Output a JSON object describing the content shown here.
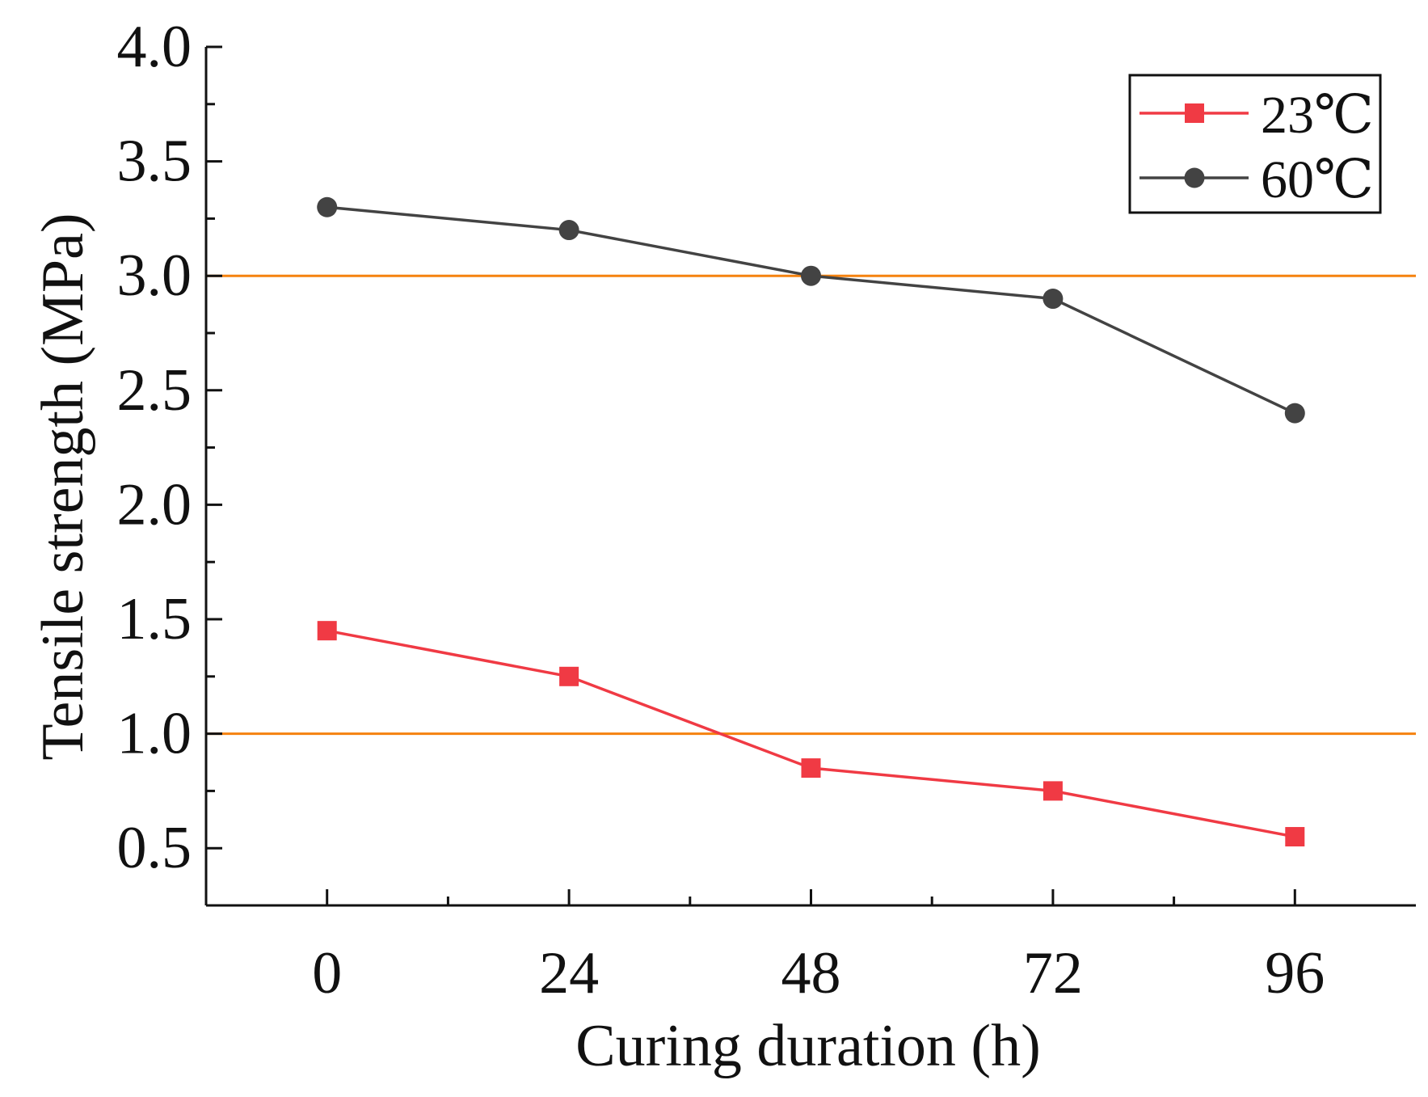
{
  "chart_data": {
    "type": "line",
    "title": "",
    "xlabel": "Curing duration (h)",
    "ylabel": "Tensile strength (MPa)",
    "x": [
      0,
      24,
      48,
      72,
      96
    ],
    "xticks": [
      "0",
      "24",
      "48",
      "72",
      "96"
    ],
    "xlim": [
      -12,
      108
    ],
    "ylim": [
      0.25,
      4.0
    ],
    "yticks": [
      "0.5",
      "1.0",
      "1.5",
      "2.0",
      "2.5",
      "3.0",
      "3.5",
      "4.0"
    ],
    "grid": false,
    "legend_position": "top-right",
    "series": [
      {
        "name": "23℃",
        "marker": "square",
        "color": "#f03a44",
        "values": [
          1.45,
          1.25,
          0.85,
          0.75,
          0.55
        ]
      },
      {
        "name": "60℃",
        "marker": "circle",
        "color": "#434343",
        "values": [
          3.3,
          3.2,
          3.0,
          2.9,
          2.4
        ]
      }
    ],
    "reference_lines": [
      {
        "y": 3.0,
        "color": "#f5820f"
      },
      {
        "y": 1.0,
        "color": "#f5820f"
      }
    ]
  }
}
